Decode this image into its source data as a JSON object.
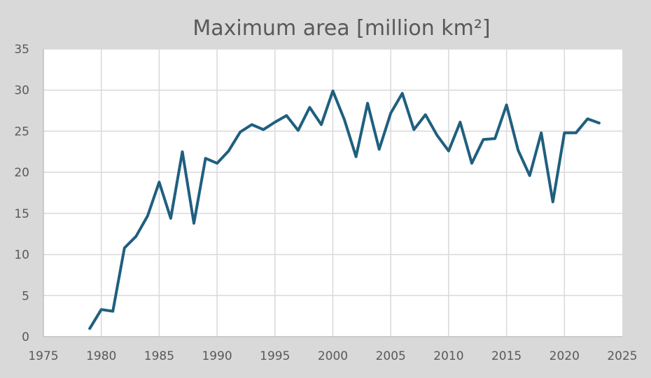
{
  "chart_data": {
    "type": "line",
    "title": "Maximum area [million km²]",
    "xlabel": "",
    "ylabel": "",
    "xlim": [
      1975,
      2025
    ],
    "ylim": [
      0,
      35
    ],
    "xticks": [
      1975,
      1980,
      1985,
      1990,
      1995,
      2000,
      2005,
      2010,
      2015,
      2020,
      2025
    ],
    "yticks": [
      0,
      5,
      10,
      15,
      20,
      25,
      30,
      35
    ],
    "grid": true,
    "legend": "none",
    "colors": {
      "series": "#1f5f7f",
      "plot_bg": "#ffffff",
      "page_bg": "#d9d9d9"
    },
    "series": [
      {
        "x": [
          1979,
          1980,
          1981,
          1982,
          1983,
          1984,
          1985,
          1986,
          1987,
          1988,
          1989,
          1990,
          1991,
          1992,
          1993,
          1994,
          1995,
          1996,
          1997,
          1998,
          1999,
          2000,
          2001,
          2002,
          2003,
          2004,
          2005,
          2006,
          2007,
          2008,
          2009,
          2010,
          2011,
          2012,
          2013,
          2014,
          2015,
          2016,
          2017,
          2018,
          2019,
          2020,
          2021,
          2022,
          2023
        ],
        "y": [
          1.0,
          3.3,
          3.1,
          10.8,
          12.2,
          14.7,
          18.8,
          14.4,
          22.5,
          13.8,
          21.7,
          21.1,
          22.6,
          24.9,
          25.8,
          25.2,
          26.1,
          26.9,
          25.1,
          27.9,
          25.8,
          29.9,
          26.4,
          21.9,
          28.4,
          22.8,
          27.2,
          29.6,
          25.2,
          27.0,
          24.5,
          22.6,
          26.1,
          21.1,
          24.0,
          24.1,
          28.2,
          22.7,
          19.6,
          24.8,
          16.4,
          24.8,
          24.8,
          26.5,
          26.0
        ]
      }
    ]
  }
}
